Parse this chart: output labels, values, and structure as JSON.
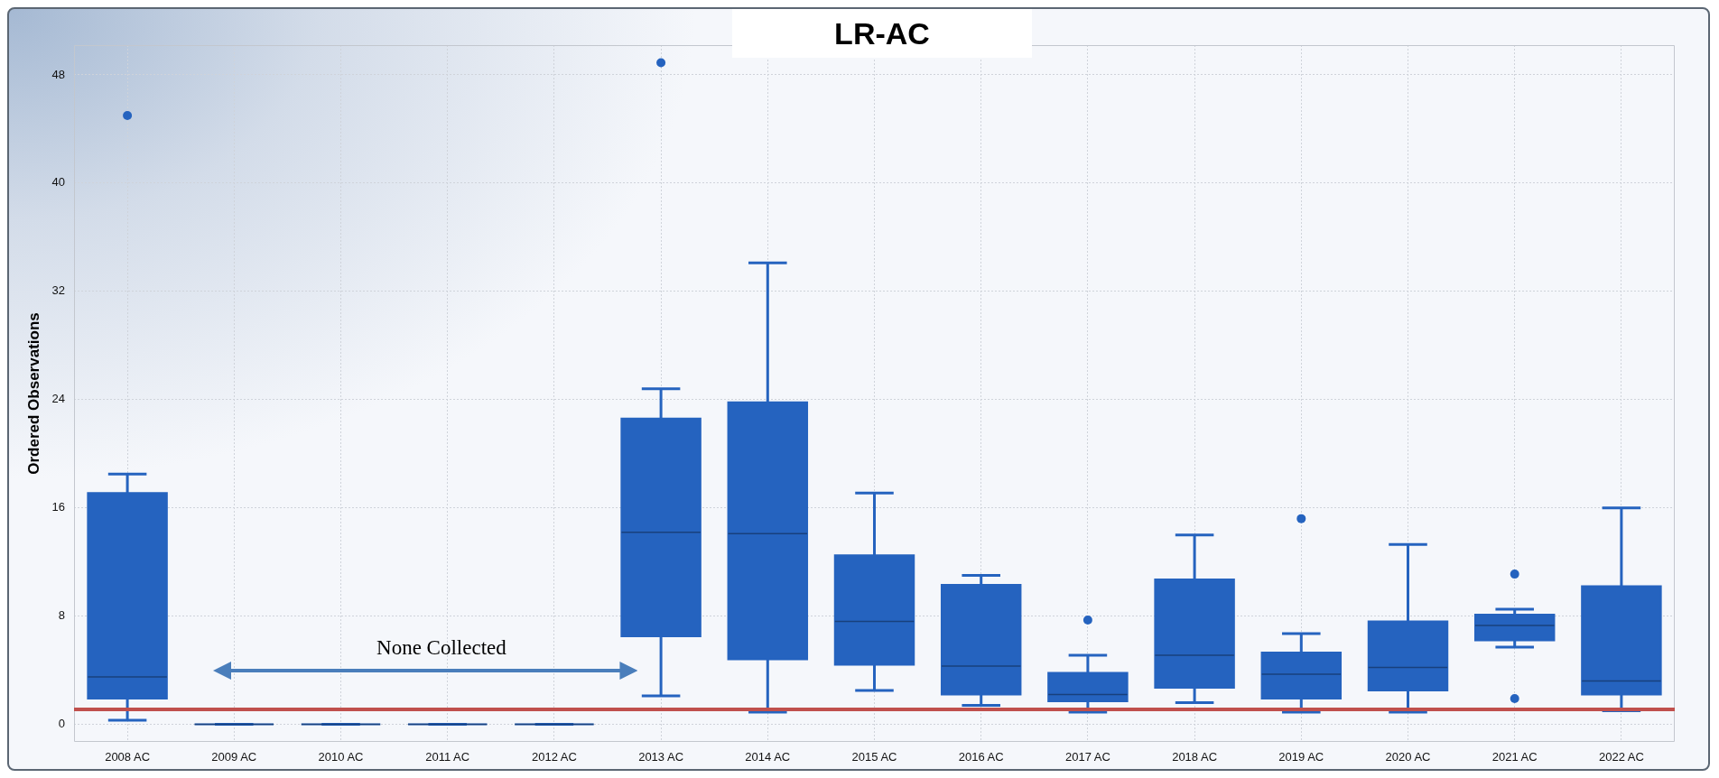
{
  "chart_data": {
    "type": "box",
    "title": "LR-AC",
    "ylabel": "Ordered Observations",
    "categories": [
      "2008 AC",
      "2009 AC",
      "2010 AC",
      "2011 AC",
      "2012 AC",
      "2013 AC",
      "2014 AC",
      "2015 AC",
      "2016 AC",
      "2017 AC",
      "2018 AC",
      "2019 AC",
      "2020 AC",
      "2021 AC",
      "2022 AC"
    ],
    "boxes": [
      {
        "low": 0.3,
        "q1": 1.9,
        "median": 3.5,
        "q3": 17.1,
        "high": 18.5,
        "outliers": [
          45
        ]
      },
      {
        "low": 0,
        "q1": 0,
        "median": 0,
        "q3": 0,
        "high": 0
      },
      {
        "low": 0,
        "q1": 0,
        "median": 0,
        "q3": 0,
        "high": 0
      },
      {
        "low": 0,
        "q1": 0,
        "median": 0,
        "q3": 0,
        "high": 0
      },
      {
        "low": 0,
        "q1": 0,
        "median": 0,
        "q3": 0,
        "high": 0
      },
      {
        "low": 2.1,
        "q1": 6.5,
        "median": 14.2,
        "q3": 22.6,
        "high": 24.8,
        "outliers": [
          48.9
        ]
      },
      {
        "low": 0.9,
        "q1": 4.8,
        "median": 14.1,
        "q3": 23.8,
        "high": 34.1
      },
      {
        "low": 2.5,
        "q1": 4.4,
        "median": 7.6,
        "q3": 12.5,
        "high": 17.1
      },
      {
        "low": 1.4,
        "q1": 2.2,
        "median": 4.3,
        "q3": 10.3,
        "high": 11.0
      },
      {
        "low": 0.9,
        "q1": 1.7,
        "median": 2.2,
        "q3": 3.8,
        "high": 5.1,
        "outliers": [
          7.7
        ]
      },
      {
        "low": 1.6,
        "q1": 2.7,
        "median": 5.1,
        "q3": 10.7,
        "high": 14.0
      },
      {
        "low": 0.9,
        "q1": 1.9,
        "median": 3.7,
        "q3": 5.3,
        "high": 6.7,
        "outliers": [
          15.2
        ]
      },
      {
        "low": 0.9,
        "q1": 2.5,
        "median": 4.2,
        "q3": 7.6,
        "high": 13.3
      },
      {
        "low": 5.7,
        "q1": 6.2,
        "median": 7.3,
        "q3": 8.1,
        "high": 8.5,
        "outliers": [
          11.1,
          1.9
        ]
      },
      {
        "low": 1.0,
        "q1": 2.2,
        "median": 3.2,
        "q3": 10.2,
        "high": 16.0
      }
    ],
    "color": "#2563bf",
    "ylim": [
      -1.3,
      50.2
    ],
    "yticks": [
      0,
      8,
      16,
      24,
      32,
      40,
      48
    ],
    "grid": true,
    "ref_lines": [
      {
        "axis": "y",
        "value": 1.1,
        "color": "#c0504d"
      }
    ],
    "annotations": [
      "None Collected"
    ]
  }
}
